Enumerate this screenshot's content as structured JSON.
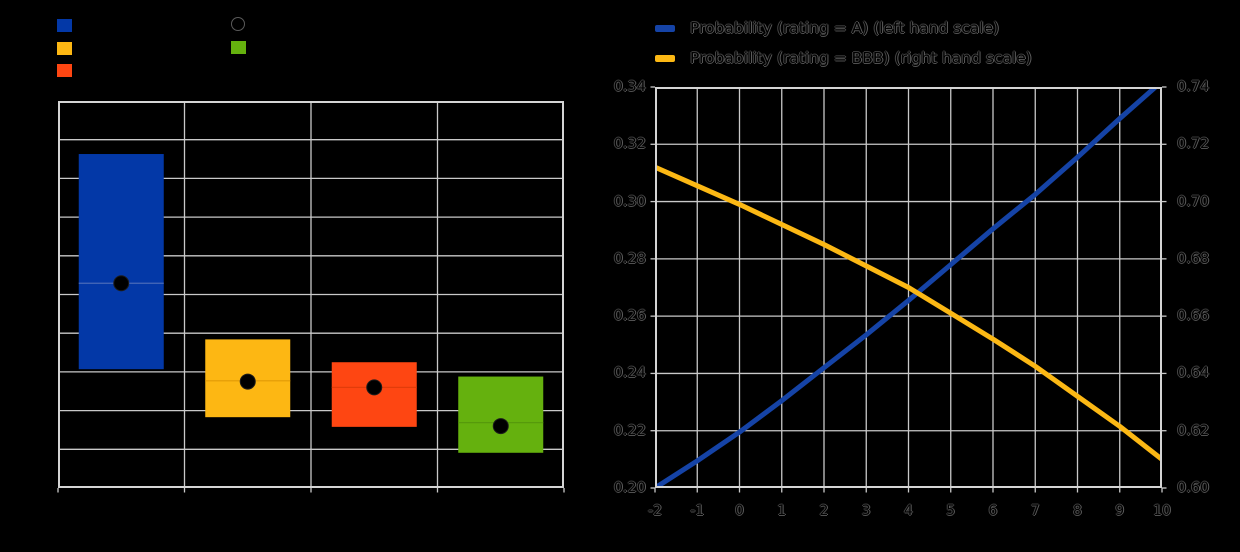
{
  "figure": {
    "background": "#000000"
  },
  "legend": {
    "left": {
      "columns": [
        {
          "items": [
            {
              "swatch": "square",
              "color": "#0338a7",
              "label": ""
            },
            {
              "swatch": "square",
              "color": "#fdb713",
              "label": ""
            },
            {
              "swatch": "square",
              "color": "#fe4612",
              "label": ""
            }
          ]
        },
        {
          "items": [
            {
              "swatch": "circle",
              "color": "#000000",
              "label": ""
            },
            {
              "swatch": "square",
              "color": "#65b10e",
              "label": ""
            }
          ]
        }
      ]
    },
    "right": {
      "items": [
        {
          "swatch": "line",
          "color": "#1543a6",
          "label": "Probability (rating = A) (left hand scale)"
        },
        {
          "swatch": "line",
          "color": "#fcb814",
          "label": "Probability (rating = BBB) (right hand scale)"
        }
      ]
    }
  },
  "chart_data": [
    {
      "type": "boxplot",
      "title": "",
      "categories": [
        "",
        "",
        "",
        ""
      ],
      "y_axis": {
        "tick_labels_visible": false,
        "gridline_units": [
          0,
          10
        ]
      },
      "grid": true,
      "mean_marker": {
        "shape": "circle",
        "color": "#000000"
      },
      "boxes": [
        {
          "color": "#0338a7",
          "median_color": "#4a6ab8",
          "top": 8.63,
          "bottom": 3.07,
          "median": 5.29,
          "mean": 5.29
        },
        {
          "color": "#fdb713",
          "median_color": "#e29a06",
          "top": 3.84,
          "bottom": 1.83,
          "median": 2.77,
          "mean": 2.75
        },
        {
          "color": "#fe4612",
          "median_color": "#e23c0a",
          "top": 3.25,
          "bottom": 1.58,
          "median": 2.6,
          "mean": 2.6
        },
        {
          "color": "#65b10e",
          "median_color": "#569a0b",
          "top": 2.88,
          "bottom": 0.91,
          "median": 1.69,
          "mean": 1.6
        }
      ]
    },
    {
      "type": "line",
      "title": "",
      "x": [
        -2,
        -1,
        0,
        1,
        2,
        3,
        4,
        5,
        6,
        7,
        8,
        9,
        10
      ],
      "x_tick_labels": [
        "-2",
        "-1",
        "0",
        "1",
        "2",
        "3",
        "4",
        "5",
        "6",
        "7",
        "8",
        "9",
        "10"
      ],
      "left_ylim": [
        0.2,
        0.34
      ],
      "right_ylim": [
        0.6,
        0.74
      ],
      "left_ytick_labels": [
        "0.34",
        "0.32",
        "0.30",
        "0.28",
        "0.26",
        "0.24",
        "0.22",
        "0.20"
      ],
      "right_ytick_labels": [
        "0.74",
        "0.72",
        "0.70",
        "0.68",
        "0.66",
        "0.64",
        "0.62",
        "0.60"
      ],
      "grid": true,
      "legend_position": "upper-left-above",
      "series": [
        {
          "name": "Probability (rating = A) (left hand scale)",
          "axis": "left",
          "color": "#1543a6",
          "values": [
            0.2,
            0.2095,
            0.2195,
            0.2305,
            0.242,
            0.2535,
            0.2655,
            0.278,
            0.2905,
            0.3025,
            0.3155,
            0.329,
            0.342
          ]
        },
        {
          "name": "Probability (rating = BBB) (right hand scale)",
          "axis": "right",
          "color": "#fcb814",
          "values": [
            0.712,
            0.7055,
            0.699,
            0.692,
            0.685,
            0.6775,
            0.67,
            0.661,
            0.652,
            0.6425,
            0.632,
            0.6215,
            0.61
          ]
        }
      ]
    }
  ]
}
